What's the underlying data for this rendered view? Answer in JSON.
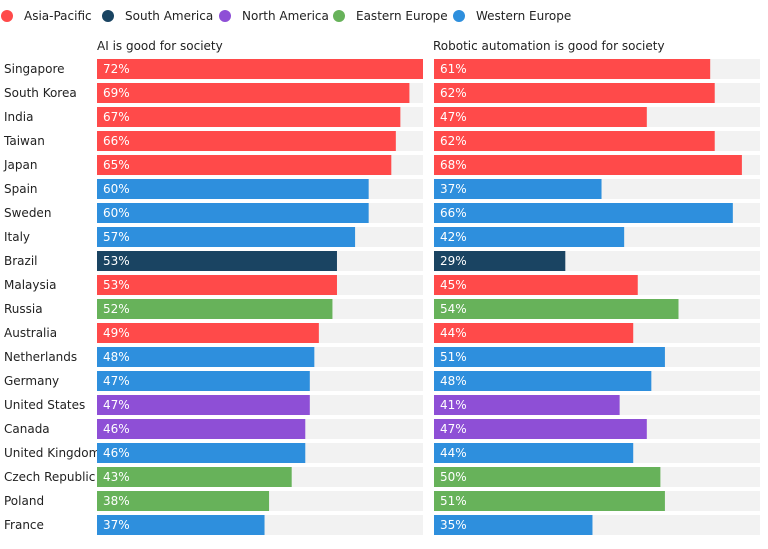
{
  "chart_data": {
    "type": "bar",
    "orientation": "horizontal",
    "xlim": [
      0,
      72
    ],
    "grid": false,
    "legend_position": "top-left",
    "regions": [
      {
        "name": "Asia-Pacific",
        "color": "#ff4a4a"
      },
      {
        "name": "South America",
        "color": "#1a4462"
      },
      {
        "name": "North America",
        "color": "#8e4fd6"
      },
      {
        "name": "Eastern Europe",
        "color": "#67b25a"
      },
      {
        "name": "Western Europe",
        "color": "#2e8fdd"
      }
    ],
    "categories": [
      "Singapore",
      "South Korea",
      "India",
      "Taiwan",
      "Japan",
      "Spain",
      "Sweden",
      "Italy",
      "Brazil",
      "Malaysia",
      "Russia",
      "Australia",
      "Netherlands",
      "Germany",
      "United States",
      "Canada",
      "United Kingdom",
      "Czech Republic",
      "Poland",
      "France"
    ],
    "category_region": [
      "Asia-Pacific",
      "Asia-Pacific",
      "Asia-Pacific",
      "Asia-Pacific",
      "Asia-Pacific",
      "Western Europe",
      "Western Europe",
      "Western Europe",
      "South America",
      "Asia-Pacific",
      "Eastern Europe",
      "Asia-Pacific",
      "Western Europe",
      "Western Europe",
      "North America",
      "North America",
      "Western Europe",
      "Eastern Europe",
      "Eastern Europe",
      "Western Europe"
    ],
    "series": [
      {
        "name": "AI is good for society",
        "values": [
          72,
          69,
          67,
          66,
          65,
          60,
          60,
          57,
          53,
          53,
          52,
          49,
          48,
          47,
          47,
          46,
          46,
          43,
          38,
          37
        ]
      },
      {
        "name": "Robotic automation is good for society",
        "values": [
          61,
          62,
          47,
          62,
          68,
          37,
          66,
          42,
          29,
          45,
          54,
          44,
          51,
          48,
          41,
          47,
          44,
          50,
          51,
          35
        ]
      }
    ],
    "value_suffix": "%",
    "track_color": "#f2f2f2"
  }
}
